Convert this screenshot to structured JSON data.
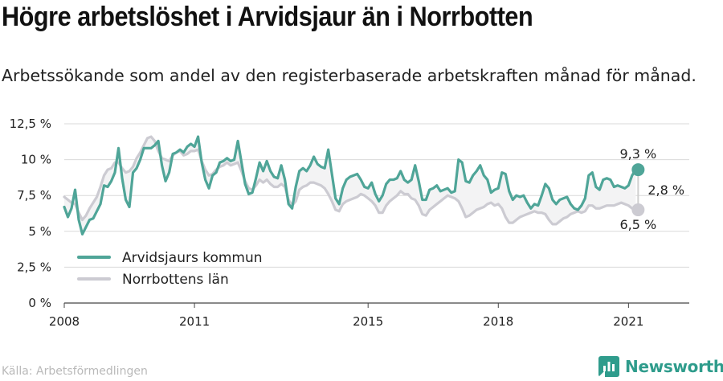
{
  "title": "Högre arbetslöshet i Arvidsjaur än i Norrbotten",
  "subtitle": "Arbetssökande som andel av den registerbaserade arbetskraften månad för månad.",
  "source": "Källa: Arbetsförmedlingen",
  "brand": {
    "name": "Newsworthy",
    "icon": "newsworthy-logo-icon",
    "color": "#2f9c8c"
  },
  "chart_data": {
    "type": "line",
    "x_start": "2008-01",
    "x_end": "2021-04",
    "x_ticks": [
      2008,
      2011,
      2015,
      2018,
      2021
    ],
    "y_ticks": [
      0,
      2.5,
      5,
      7.5,
      10,
      12.5
    ],
    "y_tick_labels": [
      "0 %",
      "2,5 %",
      "5 %",
      "7,5 %",
      "10 %",
      "12,5 %"
    ],
    "ylim": [
      0,
      12.5
    ],
    "grid": "horizontal",
    "legend_position": "bottom-left",
    "series": [
      {
        "name": "Arvidsjaurs kommun",
        "color": "#4fa598",
        "values": [
          6.7,
          6.0,
          6.6,
          7.9,
          5.8,
          4.8,
          5.3,
          5.8,
          5.9,
          6.4,
          6.9,
          8.2,
          8.1,
          8.5,
          9.1,
          10.8,
          8.7,
          7.2,
          6.7,
          9.1,
          9.4,
          10.0,
          10.8,
          10.8,
          10.8,
          11.0,
          11.3,
          9.6,
          8.5,
          9.1,
          10.4,
          10.5,
          10.7,
          10.5,
          10.9,
          11.1,
          10.9,
          11.6,
          9.8,
          8.6,
          8.0,
          8.9,
          9.1,
          9.8,
          9.9,
          10.1,
          9.9,
          10.0,
          11.3,
          9.8,
          8.3,
          7.6,
          7.7,
          8.7,
          9.8,
          9.2,
          9.9,
          9.2,
          8.8,
          8.7,
          9.6,
          8.6,
          6.9,
          6.6,
          8.1,
          9.2,
          9.4,
          9.2,
          9.6,
          10.2,
          9.7,
          9.5,
          9.4,
          10.7,
          9.0,
          7.3,
          6.9,
          8.0,
          8.6,
          8.8,
          8.9,
          9.0,
          8.6,
          8.1,
          8.0,
          8.4,
          7.6,
          7.1,
          7.5,
          8.3,
          8.6,
          8.6,
          8.7,
          9.2,
          8.6,
          8.4,
          8.6,
          9.6,
          8.5,
          7.2,
          7.2,
          7.9,
          8.0,
          8.2,
          7.8,
          7.9,
          8.0,
          7.7,
          7.8,
          10.0,
          9.8,
          8.5,
          8.4,
          8.9,
          9.2,
          9.6,
          8.9,
          8.6,
          7.7,
          7.9,
          8.0,
          9.1,
          9.0,
          7.8,
          7.2,
          7.5,
          7.4,
          7.5,
          7.0,
          6.6,
          6.9,
          6.8,
          7.5,
          8.3,
          8.0,
          7.2,
          6.9,
          7.2,
          7.3,
          7.4,
          6.9,
          6.6,
          6.5,
          6.8,
          7.3,
          8.9,
          9.1,
          8.1,
          7.9,
          8.6,
          8.7,
          8.6,
          8.1,
          8.2,
          8.1,
          8.0,
          8.2,
          8.9,
          9.3
        ]
      },
      {
        "name": "Norrbottens län",
        "color": "#cccbd2",
        "values": [
          7.4,
          7.2,
          7.0,
          6.9,
          6.3,
          5.8,
          6.1,
          6.6,
          7.0,
          7.4,
          8.1,
          8.9,
          9.3,
          9.4,
          9.8,
          9.8,
          9.4,
          9.1,
          9.2,
          9.5,
          10.1,
          10.5,
          11.0,
          11.5,
          11.6,
          11.3,
          10.6,
          10.1,
          10.0,
          9.9,
          10.3,
          10.5,
          10.6,
          10.3,
          10.4,
          10.6,
          10.6,
          10.7,
          9.9,
          9.3,
          8.9,
          9.0,
          9.3,
          9.5,
          9.6,
          9.8,
          9.6,
          9.7,
          9.8,
          9.2,
          8.5,
          8.0,
          7.9,
          8.2,
          8.6,
          8.4,
          8.6,
          8.3,
          8.1,
          8.1,
          8.3,
          8.1,
          7.2,
          6.8,
          7.1,
          7.9,
          8.1,
          8.2,
          8.4,
          8.4,
          8.3,
          8.2,
          8.0,
          7.6,
          7.1,
          6.5,
          6.4,
          6.9,
          7.1,
          7.2,
          7.3,
          7.4,
          7.6,
          7.5,
          7.3,
          7.1,
          6.8,
          6.3,
          6.3,
          6.8,
          7.1,
          7.3,
          7.5,
          7.8,
          7.6,
          7.6,
          7.3,
          7.2,
          6.8,
          6.2,
          6.1,
          6.5,
          6.7,
          6.9,
          7.1,
          7.3,
          7.5,
          7.4,
          7.3,
          7.1,
          6.6,
          6.0,
          6.1,
          6.3,
          6.5,
          6.6,
          6.7,
          6.9,
          7.0,
          6.8,
          6.9,
          6.6,
          6.0,
          5.6,
          5.6,
          5.8,
          6.0,
          6.1,
          6.2,
          6.3,
          6.4,
          6.3,
          6.3,
          6.2,
          5.8,
          5.5,
          5.5,
          5.7,
          5.9,
          6.0,
          6.2,
          6.3,
          6.4,
          6.3,
          6.4,
          6.8,
          6.8,
          6.6,
          6.6,
          6.7,
          6.8,
          6.8,
          6.8,
          6.9,
          7.0,
          6.9,
          6.8,
          6.6,
          6.5
        ]
      }
    ],
    "annotations": {
      "end_value_series_1": "9,3 %",
      "end_value_series_2": "6,5 %",
      "difference": "2,8 %"
    }
  }
}
